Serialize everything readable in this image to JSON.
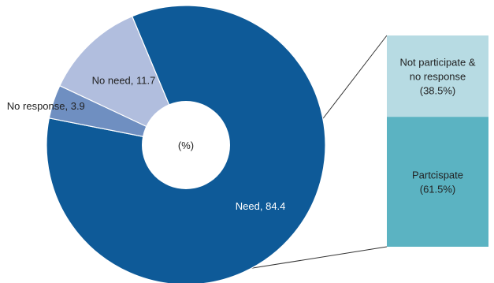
{
  "chart_data": [
    {
      "type": "pie",
      "center_label": "(%)",
      "slices": [
        {
          "label": "Need, 84.4",
          "name": "Need",
          "value": 84.4,
          "color": "#0e5a98"
        },
        {
          "label": "No response, 3.9",
          "name": "No response",
          "value": 3.9,
          "color": "#6f8fc1"
        },
        {
          "label": "No need, 11.7",
          "name": "No need",
          "value": 11.7,
          "color": "#b1bede"
        }
      ]
    },
    {
      "type": "bar",
      "stacked": true,
      "segments": [
        {
          "label_lines": [
            "Not participate &",
            "no response",
            "(38.5%)"
          ],
          "value": 38.5,
          "color": "#b7dbe3"
        },
        {
          "label_lines": [
            "Partcispate",
            "(61.5%)"
          ],
          "value": 61.5,
          "color": "#5bb3c2"
        }
      ]
    }
  ]
}
